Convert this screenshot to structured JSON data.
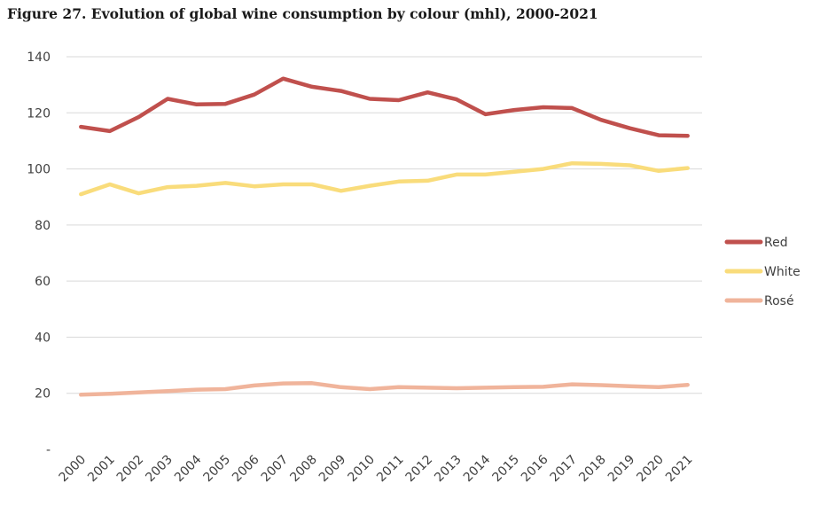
{
  "chart_data": {
    "type": "line",
    "title": "Figure 27. Evolution of global wine consumption by colour (mhl), 2000-2021",
    "xlabel": "",
    "ylabel": "",
    "ylim": [
      0,
      140
    ],
    "y_ticks": [
      {
        "value": 0,
        "label": "-"
      },
      {
        "value": 20,
        "label": "20"
      },
      {
        "value": 40,
        "label": "40"
      },
      {
        "value": 60,
        "label": "60"
      },
      {
        "value": 80,
        "label": "80"
      },
      {
        "value": 100,
        "label": "100"
      },
      {
        "value": 120,
        "label": "120"
      },
      {
        "value": 140,
        "label": "140"
      }
    ],
    "grid": true,
    "legend_position": "right",
    "x": [
      "2000",
      "2001",
      "2002",
      "2003",
      "2004",
      "2005",
      "2006",
      "2007",
      "2008",
      "2009",
      "2010",
      "2011",
      "2012",
      "2013",
      "2014",
      "2015",
      "2016",
      "2017",
      "2018",
      "2019",
      "2020",
      "2021"
    ],
    "series": [
      {
        "name": "Red",
        "color": "#c0504d",
        "values": [
          115,
          113.5,
          118.5,
          125,
          123,
          123.2,
          126.5,
          132.2,
          129.3,
          127.8,
          125,
          124.5,
          127.3,
          124.8,
          119.5,
          121,
          122,
          121.7,
          117.5,
          114.5,
          112,
          111.8
        ]
      },
      {
        "name": "White",
        "color": "#f9dc7b",
        "values": [
          91,
          94.5,
          91.3,
          93.5,
          94,
          95,
          93.8,
          94.5,
          94.5,
          92.2,
          94,
          95.5,
          95.8,
          98,
          98,
          99,
          100,
          102,
          101.8,
          101.3,
          99.3,
          100.3
        ]
      },
      {
        "name": "Rosé",
        "color": "#f0b49b",
        "values": [
          19.5,
          19.8,
          20.3,
          20.8,
          21.3,
          21.5,
          22.8,
          23.5,
          23.6,
          22.2,
          21.5,
          22.2,
          22,
          21.8,
          22,
          22.2,
          22.3,
          23.2,
          22.9,
          22.5,
          22.2,
          23
        ]
      }
    ]
  }
}
